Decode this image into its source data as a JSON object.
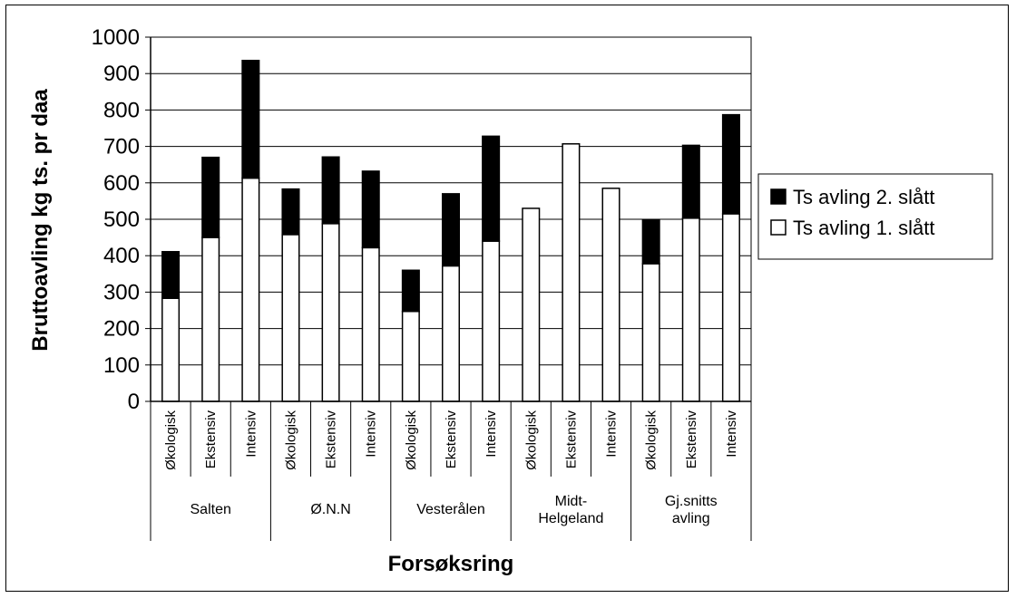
{
  "chart_data": {
    "type": "bar",
    "stacked": true,
    "xlabel": "Forsøksring",
    "ylabel": "Bruttoavling kg ts. pr daa",
    "ylim": [
      0,
      1000
    ],
    "yticks": [
      0,
      100,
      200,
      300,
      400,
      500,
      600,
      700,
      800,
      900,
      1000
    ],
    "grid": true,
    "legend_position": "right",
    "groups": [
      {
        "label_lines": [
          "Salten"
        ],
        "categories": [
          "Økologisk",
          "Ekstensiv",
          "Intensiv"
        ]
      },
      {
        "label_lines": [
          "Ø.N.N"
        ],
        "categories": [
          "Økologisk",
          "Ekstensiv",
          "Intensiv"
        ]
      },
      {
        "label_lines": [
          "Vesterålen"
        ],
        "categories": [
          "Økologisk",
          "Ekstensiv",
          "Intensiv"
        ]
      },
      {
        "label_lines": [
          "Midt-",
          "Helgeland"
        ],
        "categories": [
          "Økologisk",
          "Ekstensiv",
          "Intensiv"
        ]
      },
      {
        "label_lines": [
          "Gj.snitts",
          "avling"
        ],
        "categories": [
          "Økologisk",
          "Ekstensiv",
          "Intensiv"
        ]
      }
    ],
    "series": [
      {
        "name": "Ts avling 1. slått",
        "color": "#ffffff",
        "values": [
          283,
          450,
          613,
          458,
          488,
          422,
          247,
          372,
          440,
          530,
          707,
          585,
          378,
          503,
          515
        ]
      },
      {
        "name": "Ts avling  2. slått",
        "color": "#000000",
        "values": [
          128,
          220,
          323,
          125,
          183,
          210,
          113,
          198,
          288,
          0,
          0,
          0,
          120,
          200,
          272
        ]
      }
    ],
    "legend": [
      {
        "name": "Ts avling  2. slått",
        "color": "#000000"
      },
      {
        "name": "Ts avling 1. slått",
        "color": "#ffffff"
      }
    ]
  }
}
